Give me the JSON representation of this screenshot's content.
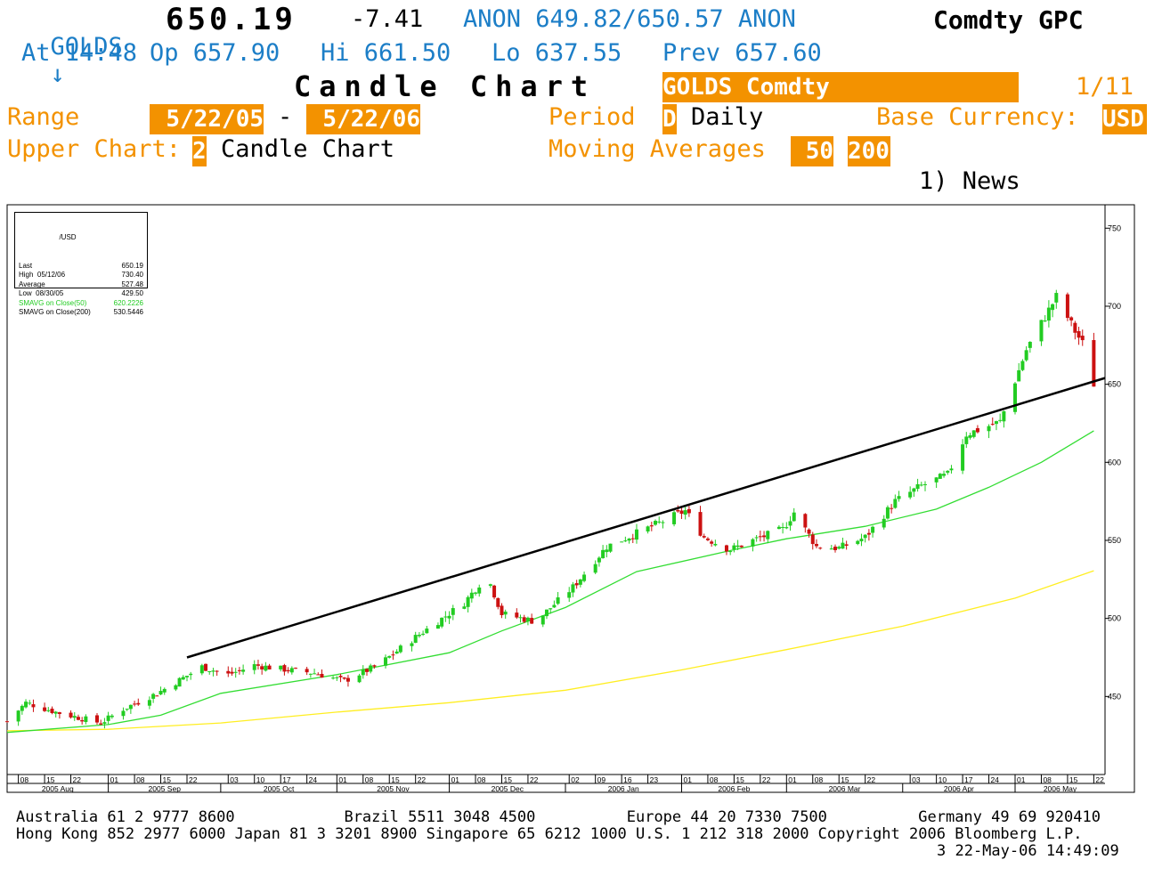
{
  "header": {
    "ticker": "GOLDS",
    "arrow": "↓",
    "last": "650.19",
    "change": "-7.41",
    "quote": "ANON 649.82/650.57 ANON",
    "sector": "Comdty GPC",
    "line2": {
      "at": "At 14:48",
      "open": "Op 657.90",
      "high": "Hi 661.50",
      "low": "Lo 637.55",
      "prev": "Prev 657.60"
    },
    "title": "Candle Chart",
    "security": "GOLDS Comdty",
    "page": "1/11",
    "range_label": "Range",
    "range_start": "5/22/05",
    "range_dash": "-",
    "range_end": "5/22/06",
    "period_label": "Period",
    "period_code": "D",
    "period_value": "Daily",
    "currency_label": "Base Currency:",
    "currency_value": "USD",
    "upper_label": "Upper Chart:",
    "upper_code": "2",
    "upper_value": "Candle Chart",
    "ma_label": "Moving Averages",
    "ma_1": "50",
    "ma_2": "200",
    "news": "1) News"
  },
  "legend": {
    "currency": "/USD",
    "rows": [
      {
        "label": "Last",
        "value": "650.19",
        "color": "#000000"
      },
      {
        "label": "High  05/12/06",
        "value": "730.40",
        "color": "#000000"
      },
      {
        "label": "Average",
        "value": "527.48",
        "color": "#000000"
      },
      {
        "label": "Low  08/30/05",
        "value": "429.50",
        "color": "#000000"
      },
      {
        "label": "SMAVG on Close(50)",
        "value": "620.2226",
        "color": "#22cc22"
      },
      {
        "label": "SMAVG on Close(200)",
        "value": "530.5446",
        "color": "#000000"
      }
    ]
  },
  "chart_data": {
    "type": "candlestick",
    "ylim": [
      400,
      765
    ],
    "y_ticks": [
      450,
      500,
      550,
      600,
      650,
      700,
      750
    ],
    "x_start": "2005-08-05",
    "x_end": "2006-05-25",
    "day_ticks": [
      {
        "date": "2005-08-08",
        "label": "08"
      },
      {
        "date": "2005-08-15",
        "label": "15"
      },
      {
        "date": "2005-08-22",
        "label": "22"
      },
      {
        "date": "2005-09-01",
        "label": "01"
      },
      {
        "date": "2005-09-08",
        "label": "08"
      },
      {
        "date": "2005-09-15",
        "label": "15"
      },
      {
        "date": "2005-09-22",
        "label": "22"
      },
      {
        "date": "2005-10-03",
        "label": "03"
      },
      {
        "date": "2005-10-10",
        "label": "10"
      },
      {
        "date": "2005-10-17",
        "label": "17"
      },
      {
        "date": "2005-10-24",
        "label": "24"
      },
      {
        "date": "2005-11-01",
        "label": "01"
      },
      {
        "date": "2005-11-08",
        "label": "08"
      },
      {
        "date": "2005-11-15",
        "label": "15"
      },
      {
        "date": "2005-11-22",
        "label": "22"
      },
      {
        "date": "2005-12-01",
        "label": "01"
      },
      {
        "date": "2005-12-08",
        "label": "08"
      },
      {
        "date": "2005-12-15",
        "label": "15"
      },
      {
        "date": "2005-12-22",
        "label": "22"
      },
      {
        "date": "2006-01-02",
        "label": "02"
      },
      {
        "date": "2006-01-09",
        "label": "09"
      },
      {
        "date": "2006-01-16",
        "label": "16"
      },
      {
        "date": "2006-01-23",
        "label": "23"
      },
      {
        "date": "2006-02-01",
        "label": "01"
      },
      {
        "date": "2006-02-08",
        "label": "08"
      },
      {
        "date": "2006-02-15",
        "label": "15"
      },
      {
        "date": "2006-02-22",
        "label": "22"
      },
      {
        "date": "2006-03-01",
        "label": "01"
      },
      {
        "date": "2006-03-08",
        "label": "08"
      },
      {
        "date": "2006-03-15",
        "label": "15"
      },
      {
        "date": "2006-03-22",
        "label": "22"
      },
      {
        "date": "2006-04-03",
        "label": "03"
      },
      {
        "date": "2006-04-10",
        "label": "10"
      },
      {
        "date": "2006-04-17",
        "label": "17"
      },
      {
        "date": "2006-04-24",
        "label": "24"
      },
      {
        "date": "2006-05-01",
        "label": "01"
      },
      {
        "date": "2006-05-08",
        "label": "08"
      },
      {
        "date": "2006-05-15",
        "label": "15"
      },
      {
        "date": "2006-05-22",
        "label": "22"
      }
    ],
    "months": [
      {
        "label": "2005 Aug",
        "start": "2005-08-05",
        "end": "2005-09-01"
      },
      {
        "label": "2005 Sep",
        "start": "2005-09-01",
        "end": "2005-10-01"
      },
      {
        "label": "2005 Oct",
        "start": "2005-10-01",
        "end": "2005-11-01"
      },
      {
        "label": "2005 Nov",
        "start": "2005-11-01",
        "end": "2005-12-01"
      },
      {
        "label": "2005 Dec",
        "start": "2005-12-01",
        "end": "2006-01-01"
      },
      {
        "label": "2006 Jan",
        "start": "2006-01-01",
        "end": "2006-02-01"
      },
      {
        "label": "2006 Feb",
        "start": "2006-02-01",
        "end": "2006-03-01"
      },
      {
        "label": "2006 Mar",
        "start": "2006-03-01",
        "end": "2006-04-01"
      },
      {
        "label": "2006 Apr",
        "start": "2006-04-01",
        "end": "2006-05-01"
      },
      {
        "label": "2006 May",
        "start": "2006-05-01",
        "end": "2006-05-25"
      }
    ],
    "close_anchors": [
      [
        "2005-08-05",
        434
      ],
      [
        "2005-08-10",
        446
      ],
      [
        "2005-08-18",
        440
      ],
      [
        "2005-08-30",
        433
      ],
      [
        "2005-09-05",
        442
      ],
      [
        "2005-09-14",
        452
      ],
      [
        "2005-09-26",
        469
      ],
      [
        "2005-10-03",
        464
      ],
      [
        "2005-10-10",
        470
      ],
      [
        "2005-10-19",
        467
      ],
      [
        "2005-10-26",
        465
      ],
      [
        "2005-11-03",
        460
      ],
      [
        "2005-11-12",
        470
      ],
      [
        "2005-11-22",
        488
      ],
      [
        "2005-12-05",
        510
      ],
      [
        "2005-12-11",
        528
      ],
      [
        "2005-12-15",
        503
      ],
      [
        "2005-12-24",
        498
      ],
      [
        "2006-01-03",
        520
      ],
      [
        "2006-01-12",
        546
      ],
      [
        "2006-01-25",
        560
      ],
      [
        "2006-02-02",
        569
      ],
      [
        "2006-02-07",
        552
      ],
      [
        "2006-02-14",
        544
      ],
      [
        "2006-02-20",
        550
      ],
      [
        "2006-02-28",
        557
      ],
      [
        "2006-03-03",
        568
      ],
      [
        "2006-03-09",
        546
      ],
      [
        "2006-03-15",
        545
      ],
      [
        "2006-03-22",
        552
      ],
      [
        "2006-03-30",
        575
      ],
      [
        "2006-04-06",
        585
      ],
      [
        "2006-04-13",
        592
      ],
      [
        "2006-04-18",
        618
      ],
      [
        "2006-04-27",
        626
      ],
      [
        "2006-05-04",
        672
      ],
      [
        "2006-05-12",
        706
      ],
      [
        "2006-05-17",
        684
      ],
      [
        "2006-05-19",
        676
      ],
      [
        "2006-05-22",
        650.19
      ]
    ],
    "sma50": [
      [
        "2005-08-05",
        427
      ],
      [
        "2005-09-01",
        432
      ],
      [
        "2005-09-15",
        438
      ],
      [
        "2005-10-01",
        452
      ],
      [
        "2005-11-01",
        464
      ],
      [
        "2005-12-01",
        478
      ],
      [
        "2005-12-15",
        492
      ],
      [
        "2006-01-01",
        507
      ],
      [
        "2006-01-20",
        530
      ],
      [
        "2006-02-15",
        544
      ],
      [
        "2006-03-01",
        551
      ],
      [
        "2006-03-22",
        559
      ],
      [
        "2006-04-10",
        570
      ],
      [
        "2006-04-24",
        584
      ],
      [
        "2006-05-08",
        600
      ],
      [
        "2006-05-22",
        620.2226
      ]
    ],
    "sma200": [
      [
        "2005-08-05",
        428
      ],
      [
        "2005-09-01",
        429
      ],
      [
        "2005-10-01",
        433
      ],
      [
        "2005-11-01",
        440
      ],
      [
        "2005-12-01",
        446
      ],
      [
        "2006-01-01",
        454
      ],
      [
        "2006-02-01",
        467
      ],
      [
        "2006-03-01",
        480
      ],
      [
        "2006-04-01",
        495
      ],
      [
        "2006-05-01",
        513
      ],
      [
        "2006-05-22",
        530.5446
      ]
    ],
    "trendline": [
      [
        "2005-09-22",
        475
      ],
      [
        "2006-05-25",
        654
      ]
    ],
    "colors": {
      "up": "#22cc22",
      "down": "#cc1111",
      "sma50": "#33dd33",
      "sma200": "#ffee22",
      "trend": "#000000"
    }
  },
  "footer": {
    "line1": "Australia 61 2 9777 8600            Brazil 5511 3048 4500          Europe 44 20 7330 7500          Germany 49 69 920410",
    "line2": "Hong Kong 852 2977 6000 Japan 81 3 3201 8900 Singapore 65 6212 1000 U.S. 1 212 318 2000 Copyright 2006 Bloomberg L.P.",
    "line3": "3 22-May-06 14:49:09"
  }
}
